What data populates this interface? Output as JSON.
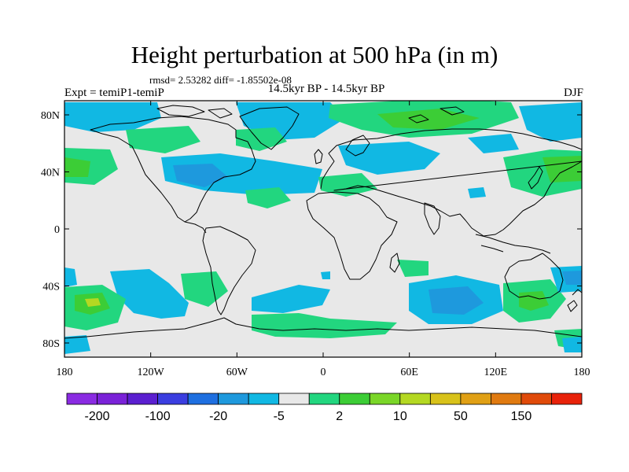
{
  "title": "Height perturbation at 500 hPa (in m)",
  "stats_line": "rmsd= 2.53282 diff= -1.85502e-08",
  "experiment_label": "Expt = temiP1-temiP",
  "period_label": "14.5kyr BP - 14.5kyr BP",
  "season_label": "DJF",
  "colors": {
    "background": "#e8e8e8",
    "neg_weak": "#11b8e3",
    "neg_mid": "#1e99dd",
    "pos_weak": "#22d67f",
    "pos_mid": "#3ccd36",
    "pos_strong": "#b4d822",
    "coast": "#000000"
  },
  "map": {
    "lon_ticks": [
      "180",
      "120W",
      "60W",
      "0",
      "60E",
      "120E",
      "180"
    ],
    "lat_ticks": [
      "80N",
      "40N",
      "0",
      "40S",
      "80S"
    ]
  },
  "colorbar": {
    "colors": [
      "#8a2be2",
      "#7a22d8",
      "#5b1fd0",
      "#3b3ee0",
      "#1e6fe0",
      "#1e99dd",
      "#11b8e3",
      "#e8e8e8",
      "#22d67f",
      "#3ccd36",
      "#7ad628",
      "#b4d822",
      "#d8c21a",
      "#e0a015",
      "#e07a10",
      "#e04a0a",
      "#e8220a"
    ],
    "labels": [
      "-200",
      "-100",
      "-20",
      "-5",
      "2",
      "10",
      "50",
      "150"
    ]
  }
}
